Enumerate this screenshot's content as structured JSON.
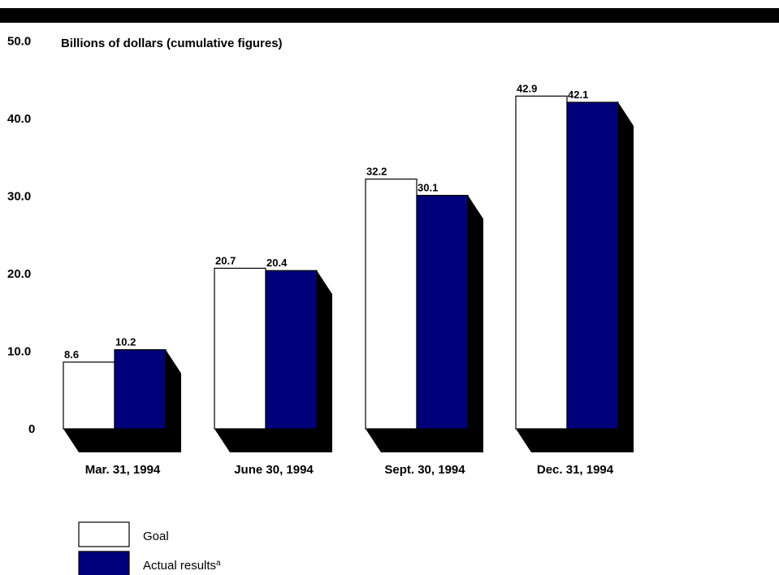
{
  "chart_data": {
    "type": "bar",
    "ylabel": "Billions of dollars (cumulative figures)",
    "ylim": [
      0,
      50
    ],
    "yticks": [
      "0",
      "10.0",
      "20.0",
      "30.0",
      "40.0",
      "50.0"
    ],
    "ytick_values": [
      0,
      10,
      20,
      30,
      40,
      50
    ],
    "categories": [
      "Mar. 31, 1994",
      "June 30, 1994",
      "Sept. 30, 1994",
      "Dec. 31, 1994"
    ],
    "series": [
      {
        "name": "Goal",
        "color": "#ffffff",
        "values": [
          8.6,
          20.7,
          32.2,
          42.9
        ],
        "labels": [
          "8.6",
          "20.7",
          "32.2",
          "42.9"
        ]
      },
      {
        "name": "Actual results",
        "superscript": "a",
        "color": "#00007a",
        "values": [
          10.2,
          20.4,
          30.1,
          42.1
        ],
        "labels": [
          "10.2",
          "20.4",
          "30.1",
          "42.1"
        ]
      }
    ],
    "legend_position": "bottom-left",
    "shadow_color": "#000000",
    "grid": false
  }
}
